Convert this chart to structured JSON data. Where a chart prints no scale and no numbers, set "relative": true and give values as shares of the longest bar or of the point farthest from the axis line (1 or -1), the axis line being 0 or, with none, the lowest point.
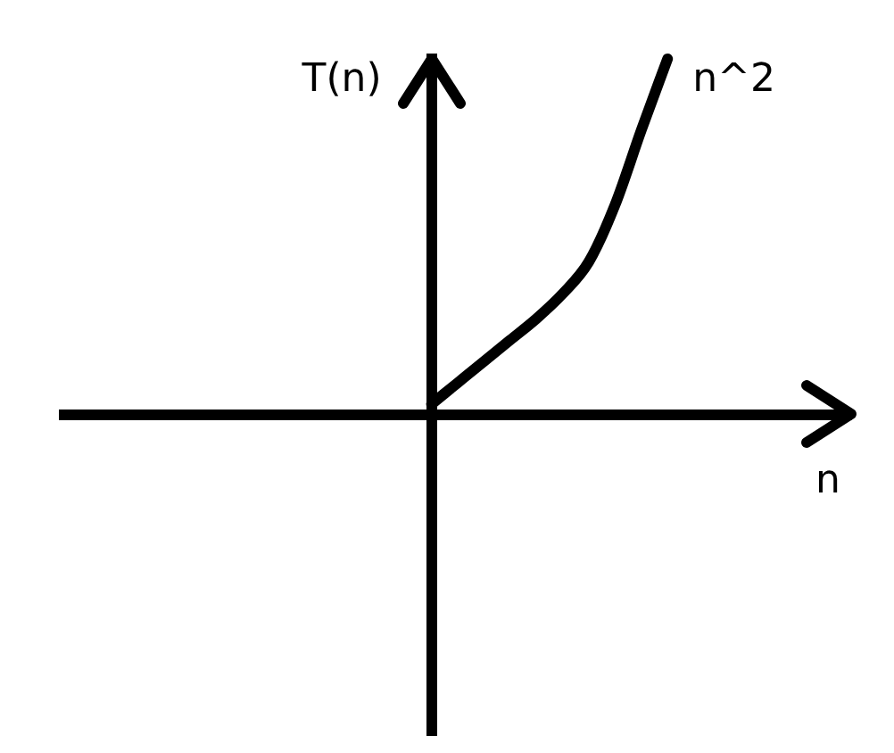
{
  "chart_data": {
    "type": "line",
    "xlabel": "n",
    "ylabel": "T(n)",
    "relative": true,
    "marker": "none",
    "line_style": "solid",
    "categories": [
      null,
      null,
      null,
      null,
      null,
      null,
      null,
      null,
      null,
      null,
      null,
      null,
      null,
      null,
      null,
      null,
      null,
      null,
      null,
      null,
      null,
      null,
      null,
      null,
      null,
      null,
      null,
      null,
      null,
      null,
      null
    ],
    "series": [
      {
        "name": "n^2",
        "color": "#000000",
        "values": [
          null,
          null,
          null,
          null,
          null,
          null,
          null,
          null,
          null,
          null,
          null,
          null,
          null,
          null,
          0.03,
          0.09,
          0.15,
          0.21,
          0.27,
          0.34,
          0.43,
          0.59,
          0.8,
          1,
          null,
          null,
          null,
          null,
          null,
          null,
          null
        ]
      }
    ]
  }
}
